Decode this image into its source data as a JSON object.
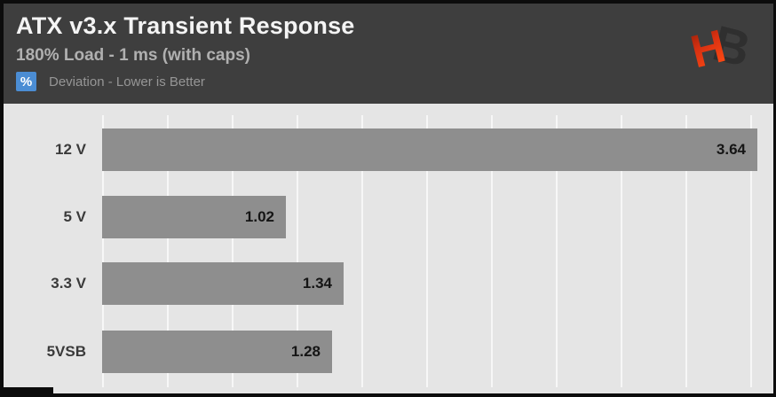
{
  "header": {
    "title": "ATX v3.x Transient Response",
    "subtitle": "180% Load - 1 ms (with caps)",
    "badge_label": "%",
    "legend": "Deviation - Lower is Better",
    "logo_h": "H",
    "logo_b": "B"
  },
  "colors": {
    "header_bg": "#3e3e3e",
    "chart_bg": "#e5e5e5",
    "bar_gray": "#8e8e8e",
    "badge_blue": "#4b8dd4",
    "logo_red": "#e63812",
    "logo_dark": "#2f2f2f",
    "frame_black": "#0c0c0c"
  },
  "chart_data": {
    "type": "bar",
    "orientation": "horizontal",
    "title": "ATX v3.x Transient Response",
    "subtitle": "180% Load - 1 ms (with caps)",
    "value_unit": "%",
    "note": "Deviation - Lower is Better",
    "lower_is_better": true,
    "categories": [
      "12 V",
      "5 V",
      "3.3 V",
      "5VSB"
    ],
    "values": [
      3.64,
      1.02,
      1.34,
      1.28
    ],
    "xlim": [
      0,
      3.73
    ],
    "grid": "vertical-only",
    "legend_position": "none",
    "value_labels": "inside-bar-end"
  }
}
